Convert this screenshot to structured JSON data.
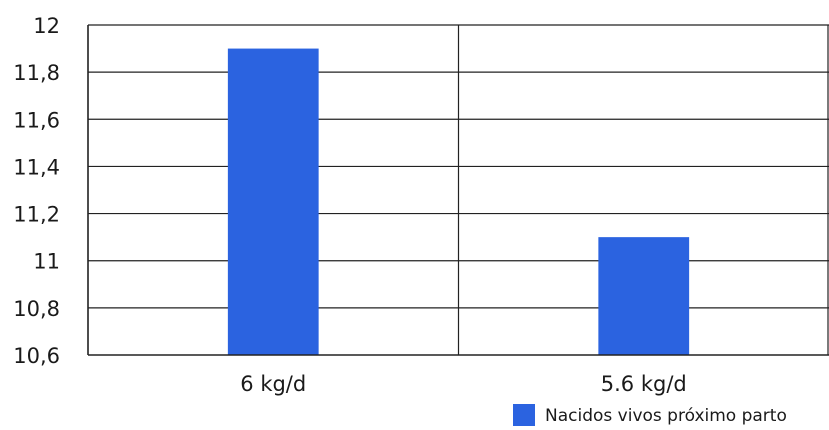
{
  "chart_data": {
    "type": "bar",
    "categories": [
      "6 kg/d",
      "5.6 kg/d"
    ],
    "series": [
      {
        "name": "Nacidos vivos próximo parto",
        "values": [
          11.9,
          11.1
        ],
        "color": "#2b63e0"
      }
    ],
    "ylim": [
      10.6,
      12
    ],
    "yticks": [
      10.6,
      10.8,
      11,
      11.2,
      11.4,
      11.6,
      11.8,
      12
    ],
    "ytick_labels": [
      "10,6",
      "10,8",
      "11",
      "11,2",
      "11,4",
      "11,6",
      "11,8",
      "12"
    ],
    "grid": true,
    "legend_position": "bottom-right",
    "title": "",
    "xlabel": "",
    "ylabel": ""
  }
}
